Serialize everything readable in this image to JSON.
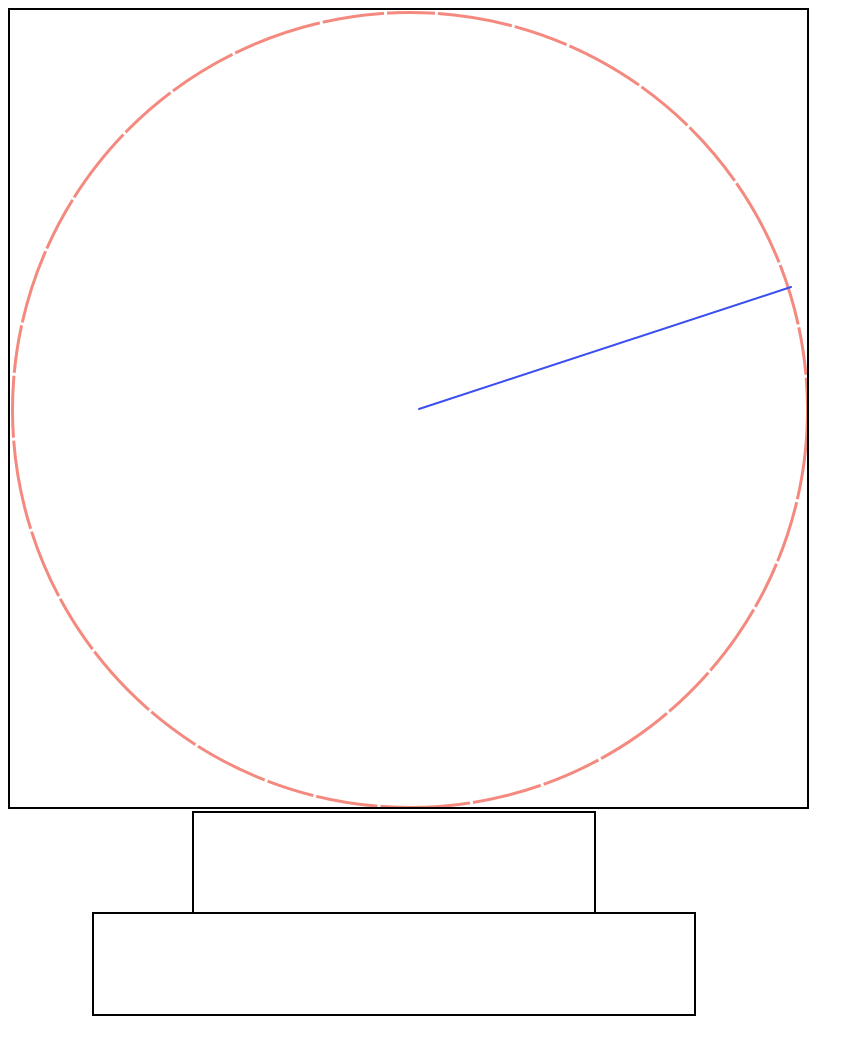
{
  "colors": {
    "circle_stroke": "#f48a7f",
    "hand_stroke": "#3b4ff0",
    "frame_border": "#000000",
    "background": "#ffffff"
  },
  "clock": {
    "hand_angle_degrees": 18
  },
  "upper_box": {
    "text": ""
  },
  "lower_box": {
    "text": ""
  }
}
